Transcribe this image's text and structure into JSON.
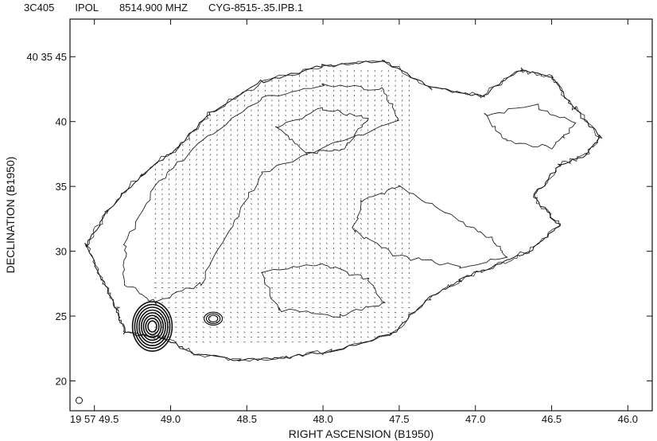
{
  "header": {
    "source": "3C405",
    "stokes": "IPOL",
    "frequency": "8514.900 MHZ",
    "map_name": "CYG-8515-.35.IPB.1"
  },
  "chart_data": {
    "type": "contour",
    "xlabel": "RIGHT ASCENSION (B1950)",
    "ylabel": "DECLINATION (B1950)",
    "x_ticks": [
      {
        "value": 49.5,
        "label": "19 57 49.5"
      },
      {
        "value": 49.0,
        "label": "49.0"
      },
      {
        "value": 48.5,
        "label": "48.5"
      },
      {
        "value": 48.0,
        "label": "48.0"
      },
      {
        "value": 47.5,
        "label": "47.5"
      },
      {
        "value": 47.0,
        "label": "47.0"
      },
      {
        "value": 46.5,
        "label": "46.5"
      },
      {
        "value": 46.0,
        "label": "46.0"
      }
    ],
    "y_ticks": [
      {
        "value": 45,
        "label": "40 35 45"
      },
      {
        "value": 40,
        "label": "40"
      },
      {
        "value": 35,
        "label": "35"
      },
      {
        "value": 30,
        "label": "30"
      },
      {
        "value": 25,
        "label": "25"
      },
      {
        "value": 20,
        "label": "20"
      }
    ],
    "xlim": [
      49.66,
      45.84
    ],
    "ylim": [
      17.7,
      47.9
    ],
    "x_direction": "decreasing",
    "outline": [
      [
        49.55,
        30.5
      ],
      [
        49.42,
        33.0
      ],
      [
        49.2,
        35.8
      ],
      [
        48.95,
        38.0
      ],
      [
        48.75,
        40.6
      ],
      [
        48.4,
        43.1
      ],
      [
        48.0,
        44.3
      ],
      [
        47.6,
        44.7
      ],
      [
        47.3,
        42.6
      ],
      [
        46.95,
        42.0
      ],
      [
        46.7,
        44.0
      ],
      [
        46.5,
        43.4
      ],
      [
        46.35,
        41.0
      ],
      [
        46.18,
        38.8
      ],
      [
        46.28,
        37.4
      ],
      [
        46.45,
        36.6
      ],
      [
        46.62,
        34.2
      ],
      [
        46.45,
        32.0
      ],
      [
        46.65,
        30.0
      ],
      [
        46.85,
        29.0
      ],
      [
        47.1,
        27.8
      ],
      [
        47.3,
        26.4
      ],
      [
        47.55,
        23.6
      ],
      [
        47.95,
        22.3
      ],
      [
        48.25,
        21.8
      ],
      [
        48.55,
        21.6
      ],
      [
        48.85,
        22.1
      ],
      [
        49.05,
        23.3
      ],
      [
        49.3,
        23.7
      ],
      [
        49.35,
        25.5
      ],
      [
        49.45,
        27.8
      ]
    ],
    "inner_contours": [
      [
        [
          49.3,
          30.5
        ],
        [
          49.1,
          35.0
        ],
        [
          48.8,
          38.5
        ],
        [
          48.4,
          41.8
        ],
        [
          48.0,
          42.8
        ],
        [
          47.6,
          42.5
        ],
        [
          47.5,
          40.0
        ],
        [
          47.9,
          38.5
        ],
        [
          48.4,
          36.0
        ],
        [
          48.6,
          32.0
        ],
        [
          48.8,
          27.5
        ],
        [
          49.1,
          26.0
        ],
        [
          49.3,
          27.5
        ]
      ],
      [
        [
          48.3,
          39.5
        ],
        [
          48.0,
          41.0
        ],
        [
          47.7,
          40.2
        ],
        [
          47.85,
          38.0
        ],
        [
          48.1,
          37.5
        ]
      ],
      [
        [
          47.5,
          35.0
        ],
        [
          47.2,
          33.0
        ],
        [
          46.9,
          31.0
        ],
        [
          46.8,
          29.5
        ],
        [
          47.1,
          28.8
        ],
        [
          47.5,
          29.6
        ],
        [
          47.8,
          31.5
        ],
        [
          47.75,
          33.8
        ]
      ],
      [
        [
          46.95,
          40.5
        ],
        [
          46.6,
          41.2
        ],
        [
          46.35,
          39.8
        ],
        [
          46.5,
          38.0
        ],
        [
          46.8,
          38.5
        ]
      ],
      [
        [
          48.4,
          28.5
        ],
        [
          48.0,
          29.0
        ],
        [
          47.7,
          27.8
        ],
        [
          47.6,
          26.0
        ],
        [
          47.9,
          25.0
        ],
        [
          48.3,
          25.5
        ]
      ]
    ],
    "hotspot": {
      "x": 49.12,
      "y": 24.2,
      "rx": 0.13,
      "ry": 1.9,
      "rings": 8
    },
    "hotspot_secondary": {
      "x": 48.72,
      "y": 24.8,
      "rx": 0.06,
      "ry": 0.5,
      "rings": 3
    },
    "vector_region": {
      "x_min": 47.4,
      "x_max": 49.1,
      "y_min": 23.0,
      "y_max": 44.0,
      "spacing": 0.045,
      "dec_spacing": 0.38,
      "length": 0.12
    },
    "beam": {
      "x": 49.6,
      "y": 18.5,
      "r": 0.02
    },
    "grid": false
  }
}
